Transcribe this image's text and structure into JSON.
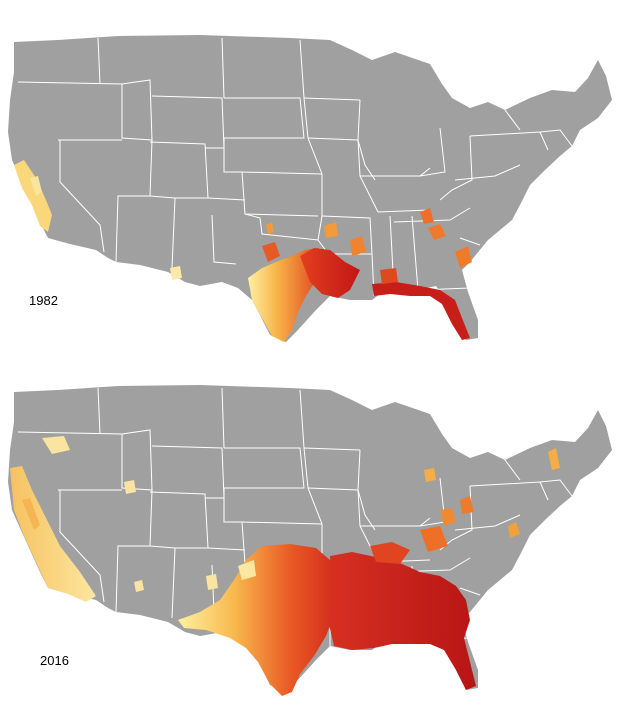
{
  "colors": {
    "background": "#ffffff",
    "land": "#a0a0a0",
    "state_border": "#ffffff",
    "scale_low": "#fff3a8",
    "scale_mid": "#f6a93c",
    "scale_high": "#d7191c"
  },
  "maps": [
    {
      "year_label": "1982"
    },
    {
      "year_label": "2016"
    }
  ]
}
